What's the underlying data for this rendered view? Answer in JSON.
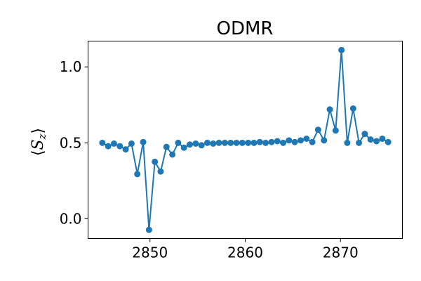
{
  "chart_data": {
    "type": "line",
    "title": "ODMR",
    "xlabel": "",
    "ylabel": "⟨S_z⟩",
    "ylabel_parts": {
      "open": "⟨",
      "symbol": "S",
      "subscript": "z",
      "close": "⟩"
    },
    "xlim": [
      2843.5,
      2876.5
    ],
    "ylim": [
      -0.13,
      1.17
    ],
    "x_ticks": [
      2850,
      2860,
      2870
    ],
    "x_tick_labels": [
      "2850",
      "2860",
      "2870"
    ],
    "y_ticks": [
      0.0,
      0.5,
      1.0
    ],
    "y_tick_labels": [
      "0.0",
      "0.5",
      "1.0"
    ],
    "grid": false,
    "series": [
      {
        "color": "#1f77b4",
        "marker": "circle",
        "x": [
          2845.0,
          2845.61,
          2846.22,
          2846.84,
          2847.45,
          2848.06,
          2848.67,
          2849.29,
          2849.9,
          2850.51,
          2851.12,
          2851.73,
          2852.35,
          2852.96,
          2853.57,
          2854.18,
          2854.8,
          2855.41,
          2856.02,
          2856.63,
          2857.24,
          2857.86,
          2858.47,
          2859.08,
          2859.69,
          2860.31,
          2860.92,
          2861.53,
          2862.14,
          2862.76,
          2863.37,
          2863.98,
          2864.59,
          2865.2,
          2865.82,
          2866.43,
          2867.04,
          2867.65,
          2868.27,
          2868.88,
          2869.49,
          2870.1,
          2870.71,
          2871.33,
          2871.94,
          2872.55,
          2873.16,
          2873.78,
          2874.39,
          2875.0
        ],
        "y": [
          0.5,
          0.478,
          0.495,
          0.478,
          0.457,
          0.495,
          0.294,
          0.505,
          -0.073,
          0.375,
          0.311,
          0.473,
          0.423,
          0.5,
          0.468,
          0.489,
          0.495,
          0.484,
          0.5,
          0.495,
          0.5,
          0.5,
          0.5,
          0.5,
          0.5,
          0.5,
          0.5,
          0.505,
          0.5,
          0.505,
          0.511,
          0.5,
          0.516,
          0.505,
          0.516,
          0.527,
          0.505,
          0.586,
          0.516,
          0.72,
          0.581,
          1.111,
          0.5,
          0.726,
          0.5,
          0.559,
          0.522,
          0.511,
          0.527,
          0.505
        ]
      }
    ]
  }
}
